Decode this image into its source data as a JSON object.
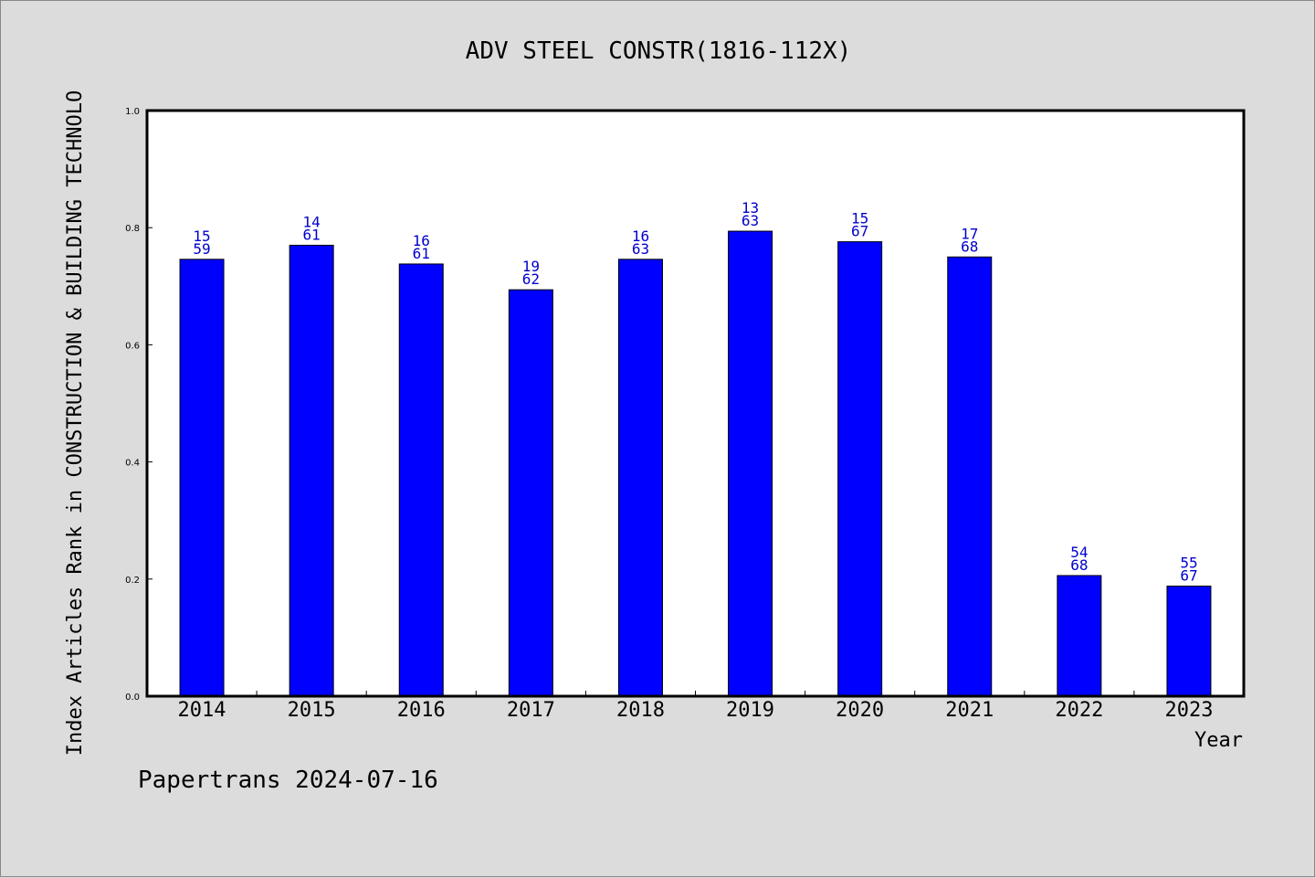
{
  "chart_data": {
    "type": "bar",
    "title": "ADV STEEL CONSTR(1816-112X)",
    "ylabel": "Index Articles Rank in CONSTRUCTION & BUILDING TECHNOLO",
    "xlabel": "Year",
    "ylim": [
      0.0,
      1.0
    ],
    "yticks": [
      "0.0",
      "0.2",
      "0.4",
      "0.6",
      "0.8",
      "1.0"
    ],
    "categories": [
      "2014",
      "2015",
      "2016",
      "2017",
      "2018",
      "2019",
      "2020",
      "2021",
      "2022",
      "2023"
    ],
    "values": [
      0.746,
      0.77,
      0.738,
      0.694,
      0.746,
      0.794,
      0.776,
      0.75,
      0.206,
      0.188
    ],
    "labels_top": [
      "15",
      "14",
      "16",
      "19",
      "16",
      "13",
      "15",
      "17",
      "54",
      "55"
    ],
    "labels_bottom": [
      "59",
      "61",
      "61",
      "62",
      "63",
      "63",
      "67",
      "68",
      "68",
      "67"
    ],
    "bar_color": "#0000ff",
    "label_color": "#0000cc",
    "grid": false
  },
  "footer": "Papertrans 2024-07-16"
}
